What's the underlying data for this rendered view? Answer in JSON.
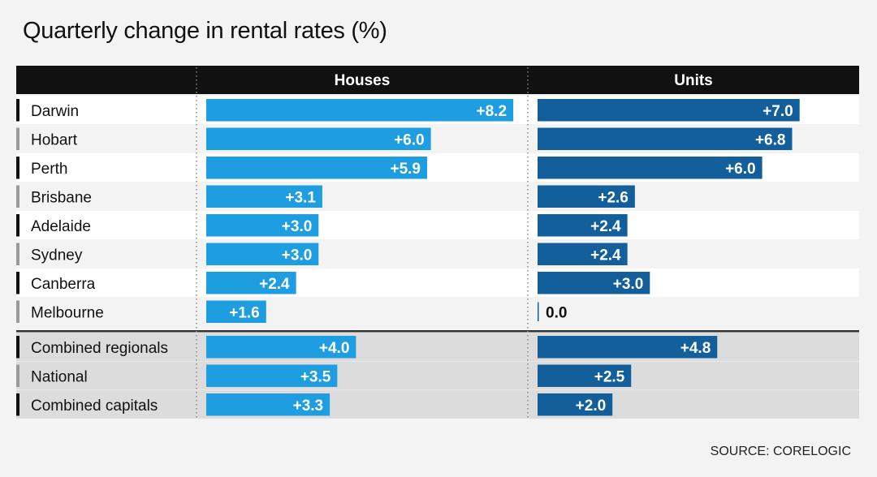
{
  "title": "Quarterly change in rental rates (%)",
  "source": "SOURCE: CORELOGIC",
  "colors": {
    "header_bg": "#111111",
    "houses_bar": "#1e9ee0",
    "units_bar": "#125f9c",
    "row_white": "#ffffff",
    "row_grey": "#dcdcdc",
    "marker_dark": "#111111",
    "marker_grey": "#9a9a9a"
  },
  "chart_data": {
    "type": "bar",
    "title": "Quarterly change in rental rates (%)",
    "columns": [
      "Houses",
      "Units"
    ],
    "categories": [
      "Darwin",
      "Hobart",
      "Perth",
      "Brisbane",
      "Adelaide",
      "Sydney",
      "Canberra",
      "Melbourne",
      "Combined regionals",
      "National",
      "Combined capitals"
    ],
    "series": [
      {
        "name": "Houses",
        "values": [
          8.2,
          6.0,
          5.9,
          3.1,
          3.0,
          3.0,
          2.4,
          1.6,
          4.0,
          3.5,
          3.3
        ],
        "labels": [
          "+8.2",
          "+6.0",
          "+5.9",
          "+3.1",
          "+3.0",
          "+3.0",
          "+2.4",
          "+1.6",
          "+4.0",
          "+3.5",
          "+3.3"
        ]
      },
      {
        "name": "Units",
        "values": [
          7.0,
          6.8,
          6.0,
          2.6,
          2.4,
          2.4,
          3.0,
          0.0,
          4.8,
          2.5,
          2.0
        ],
        "labels": [
          "+7.0",
          "+6.8",
          "+6.0",
          "+2.6",
          "+2.4",
          "+2.4",
          "+3.0",
          "0.0",
          "+4.8",
          "+2.5",
          "+2.0"
        ]
      }
    ],
    "row_group": [
      "city",
      "city",
      "city",
      "city",
      "city",
      "city",
      "city",
      "city",
      "summary",
      "summary",
      "summary"
    ],
    "marker_style": [
      "dark",
      "grey",
      "dark",
      "grey",
      "dark",
      "grey",
      "dark",
      "grey",
      "dark",
      "grey",
      "dark"
    ],
    "xlim": [
      0,
      8.2
    ]
  }
}
